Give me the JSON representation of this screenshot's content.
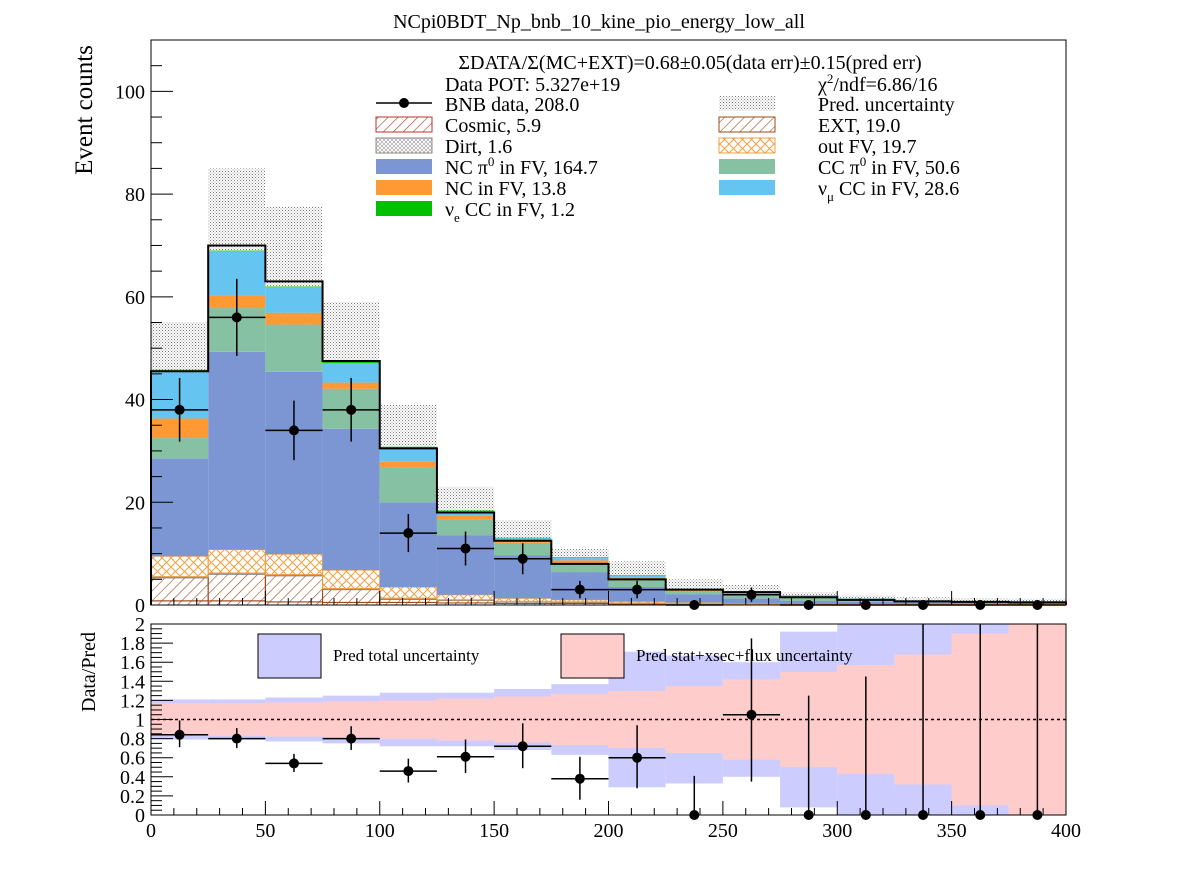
{
  "chart_data": [
    {
      "type": "bar",
      "stacked": true,
      "title": "NCpi0BDT_Np_bnb_10_kine_pio_energy_low_all",
      "xlabel": "",
      "ylabel": "Event counts",
      "xlim": [
        0,
        400
      ],
      "ylim": [
        0,
        110
      ],
      "yticks": [
        0,
        20,
        40,
        60,
        80,
        100
      ],
      "bin_edges": [
        0,
        25,
        50,
        75,
        100,
        125,
        150,
        175,
        200,
        225,
        250,
        275,
        300,
        325,
        350,
        375,
        400
      ],
      "summary_line": "ΣDATA/Σ(MC+EXT)=0.68±0.05(data err)±0.15(pred err)",
      "pot_label": "Data POT: 5.327e+19",
      "chi2_label": "χ²/ndf=6.86/16",
      "series": [
        {
          "name": "Cosmic, 5.9",
          "style": "hatch",
          "color": "#c0302a",
          "values": [
            0.8,
            0.8,
            0.6,
            0.5,
            0.5,
            0.4,
            0.3,
            0.3,
            0.2,
            0.2,
            0.2,
            0.1,
            0.1,
            0.1,
            0.1,
            0.1
          ]
        },
        {
          "name": "EXT, 19.0",
          "style": "hatch",
          "color": "#9a4a18",
          "values": [
            4.5,
            5.2,
            5.1,
            2.5,
            0.6,
            0.5,
            0.3,
            0.2,
            0.1,
            0.0,
            0.0,
            0.0,
            0.0,
            0.0,
            0.0,
            0.0
          ]
        },
        {
          "name": "Dirt, 1.6",
          "style": "hatch",
          "color": "#888888",
          "values": [
            0.2,
            0.2,
            0.2,
            0.2,
            0.2,
            0.1,
            0.1,
            0.1,
            0.1,
            0.1,
            0.0,
            0.0,
            0.0,
            0.0,
            0.0,
            0.0
          ]
        },
        {
          "name": "out FV, 19.7",
          "style": "hatch",
          "color": "#f0a040",
          "values": [
            4.0,
            4.6,
            4.0,
            3.6,
            2.2,
            1.0,
            0.6,
            0.4,
            0.3,
            0.2,
            0.1,
            0.1,
            0.1,
            0.1,
            0.1,
            0.1
          ]
        },
        {
          "name": "NC π⁰ in FV,  164.7",
          "style": "solid",
          "color": "#7b96d2",
          "values": [
            19.0,
            38.5,
            35.5,
            27.5,
            16.5,
            11.6,
            8.4,
            5.4,
            2.8,
            1.6,
            1.0,
            0.6,
            0.4,
            0.3,
            0.3,
            0.3
          ]
        },
        {
          "name": "CC π⁰ in FV, 50.6",
          "style": "solid",
          "color": "#86c1a3",
          "values": [
            4.0,
            8.5,
            9.2,
            7.8,
            6.8,
            3.1,
            2.4,
            1.8,
            1.4,
            0.6,
            0.6,
            0.7,
            0.6,
            0.3,
            0.2,
            0.2
          ]
        },
        {
          "name": "NC in FV, 13.8",
          "style": "solid",
          "color": "#ff9933",
          "values": [
            3.8,
            2.4,
            2.3,
            1.2,
            1.1,
            0.8,
            0.4,
            0.5,
            0.4,
            0.2,
            0.1,
            0.1,
            0.0,
            0.0,
            0.0,
            0.0
          ]
        },
        {
          "name": "ν_μ CC in FV, 28.6",
          "style": "solid",
          "color": "#66c4f0",
          "values": [
            9.4,
            8.7,
            5.0,
            3.8,
            2.8,
            0.8,
            0.5,
            0.5,
            0.4,
            0.1,
            0.3,
            0.3,
            0.1,
            0.1,
            0.1,
            0.1
          ]
        },
        {
          "name": "ν_e CC in FV, 1.2",
          "style": "solid",
          "color": "#00c000",
          "values": [
            0.1,
            0.1,
            0.1,
            0.2,
            0.1,
            0.1,
            0.1,
            0.1,
            0.1,
            0.1,
            0.1,
            0.0,
            0.0,
            0.0,
            0.0,
            0.0
          ]
        }
      ],
      "pred_total": [
        45.5,
        70.0,
        63.0,
        47.5,
        30.5,
        18.0,
        12.5,
        8.0,
        5.0,
        3.0,
        2.5,
        1.5,
        1.0,
        0.7,
        0.6,
        0.5
      ],
      "pred_uncertainty": {
        "name": "Pred. uncertainty",
        "up": [
          55.0,
          85.0,
          77.5,
          59.0,
          39.0,
          23.0,
          16.5,
          11.0,
          8.5,
          5.0,
          4.0,
          2.5,
          1.8,
          1.5,
          1.3,
          1.2
        ],
        "down": [
          36.0,
          55.0,
          48.5,
          36.0,
          22.0,
          13.0,
          8.5,
          5.0,
          1.5,
          1.0,
          1.0,
          0.5,
          0.2,
          0.0,
          0.0,
          0.0
        ]
      },
      "data": {
        "name": "BNB data, 208.0",
        "x": [
          12.5,
          37.5,
          62.5,
          87.5,
          112.5,
          137.5,
          162.5,
          187.5,
          212.5,
          237.5,
          262.5,
          287.5,
          312.5,
          337.5,
          362.5,
          387.5
        ],
        "y": [
          38,
          56,
          34,
          38,
          14,
          11,
          9,
          3,
          3,
          0,
          2,
          0,
          0,
          0,
          0,
          0
        ],
        "err": [
          6.2,
          7.5,
          5.8,
          6.2,
          3.7,
          3.3,
          3.0,
          1.7,
          1.7,
          0.0,
          1.4,
          0.0,
          0.0,
          0.0,
          0.0,
          0.0
        ]
      },
      "legend": {
        "left": [
          "BNB data, 208.0",
          "Cosmic, 5.9",
          "Dirt, 1.6",
          "NC π⁰ in FV,  164.7",
          "NC in FV, 13.8",
          "ν_e CC in FV, 1.2"
        ],
        "right": [
          "Pred. uncertainty",
          "EXT, 19.0",
          "out FV, 19.7",
          "CC π⁰ in FV, 50.6",
          "ν_μ CC in FV, 28.6"
        ]
      }
    },
    {
      "type": "scatter",
      "ylabel": "Data/Pred",
      "xlabel": "",
      "xlim": [
        0,
        400
      ],
      "ylim": [
        0,
        2.0
      ],
      "xticks": [
        0,
        50,
        100,
        150,
        200,
        250,
        300,
        350,
        400
      ],
      "yticks": [
        0,
        0.2,
        0.4,
        0.6,
        0.8,
        1,
        1.2,
        1.4,
        1.6,
        1.8,
        2
      ],
      "reference_line": 1,
      "bands": [
        {
          "name": "Pred total uncertainty",
          "color": "#ccccff",
          "up": [
            1.21,
            1.21,
            1.23,
            1.25,
            1.28,
            1.28,
            1.32,
            1.37,
            1.71,
            1.67,
            1.6,
            1.92,
            2.0,
            2.0,
            2.0,
            2.0
          ],
          "down": [
            0.79,
            0.79,
            0.77,
            0.75,
            0.72,
            0.72,
            0.68,
            0.63,
            0.29,
            0.33,
            0.4,
            0.08,
            0.0,
            0.0,
            0.0,
            0.0
          ]
        },
        {
          "name": "Pred stat+xsec+flux uncertainty",
          "color": "#ffcccc",
          "up": [
            1.17,
            1.17,
            1.18,
            1.19,
            1.2,
            1.22,
            1.24,
            1.27,
            1.3,
            1.35,
            1.42,
            1.5,
            1.57,
            1.68,
            1.9,
            2.0
          ],
          "down": [
            0.83,
            0.83,
            0.82,
            0.81,
            0.8,
            0.78,
            0.76,
            0.73,
            0.7,
            0.65,
            0.58,
            0.5,
            0.43,
            0.32,
            0.1,
            0.0
          ]
        }
      ],
      "points": {
        "x": [
          12.5,
          37.5,
          62.5,
          87.5,
          112.5,
          137.5,
          162.5,
          187.5,
          212.5,
          237.5,
          262.5,
          287.5,
          312.5,
          337.5,
          362.5,
          387.5
        ],
        "y": [
          0.84,
          0.8,
          0.54,
          0.8,
          0.46,
          0.61,
          0.72,
          0.38,
          0.6,
          0.0,
          1.05,
          0.0,
          0.0,
          0.0,
          0.0,
          0.0
        ],
        "err_up": [
          0.15,
          0.11,
          0.1,
          0.13,
          0.13,
          0.18,
          0.24,
          0.23,
          0.34,
          0.41,
          0.8,
          1.25,
          1.45,
          2.0,
          2.0,
          2.0
        ],
        "err_down": [
          0.13,
          0.1,
          0.09,
          0.12,
          0.12,
          0.17,
          0.23,
          0.22,
          0.32,
          0.0,
          0.7,
          0.0,
          0.0,
          0.0,
          0.0,
          0.0
        ]
      }
    }
  ]
}
